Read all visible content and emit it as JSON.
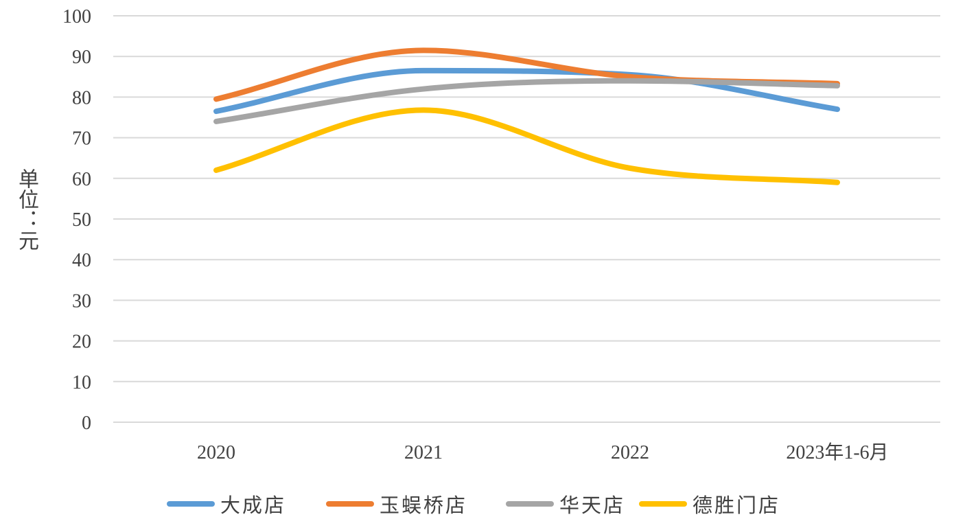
{
  "chart_data": {
    "type": "line",
    "title": "",
    "xlabel": "",
    "ylabel": "单位：元",
    "categories": [
      "2020",
      "2021",
      "2022",
      "2023年1-6月"
    ],
    "ylim": [
      0,
      100
    ],
    "yticks": [
      0,
      10,
      20,
      30,
      40,
      50,
      60,
      70,
      80,
      90,
      100
    ],
    "grid": true,
    "legend_position": "bottom",
    "smooth": true,
    "series": [
      {
        "name": "大成店",
        "color": "#5B9BD5",
        "values": [
          76.5,
          86.5,
          85.5,
          77.0
        ]
      },
      {
        "name": "玉蜈桥店",
        "color": "#ED7D31",
        "values": [
          79.5,
          91.5,
          85.0,
          83.3
        ]
      },
      {
        "name": "华天店",
        "color": "#A5A5A5",
        "values": [
          74.0,
          82.0,
          84.0,
          82.8
        ]
      },
      {
        "name": "德胜门店",
        "color": "#FFC000",
        "values": [
          62.0,
          76.8,
          62.5,
          59.0
        ]
      }
    ]
  }
}
